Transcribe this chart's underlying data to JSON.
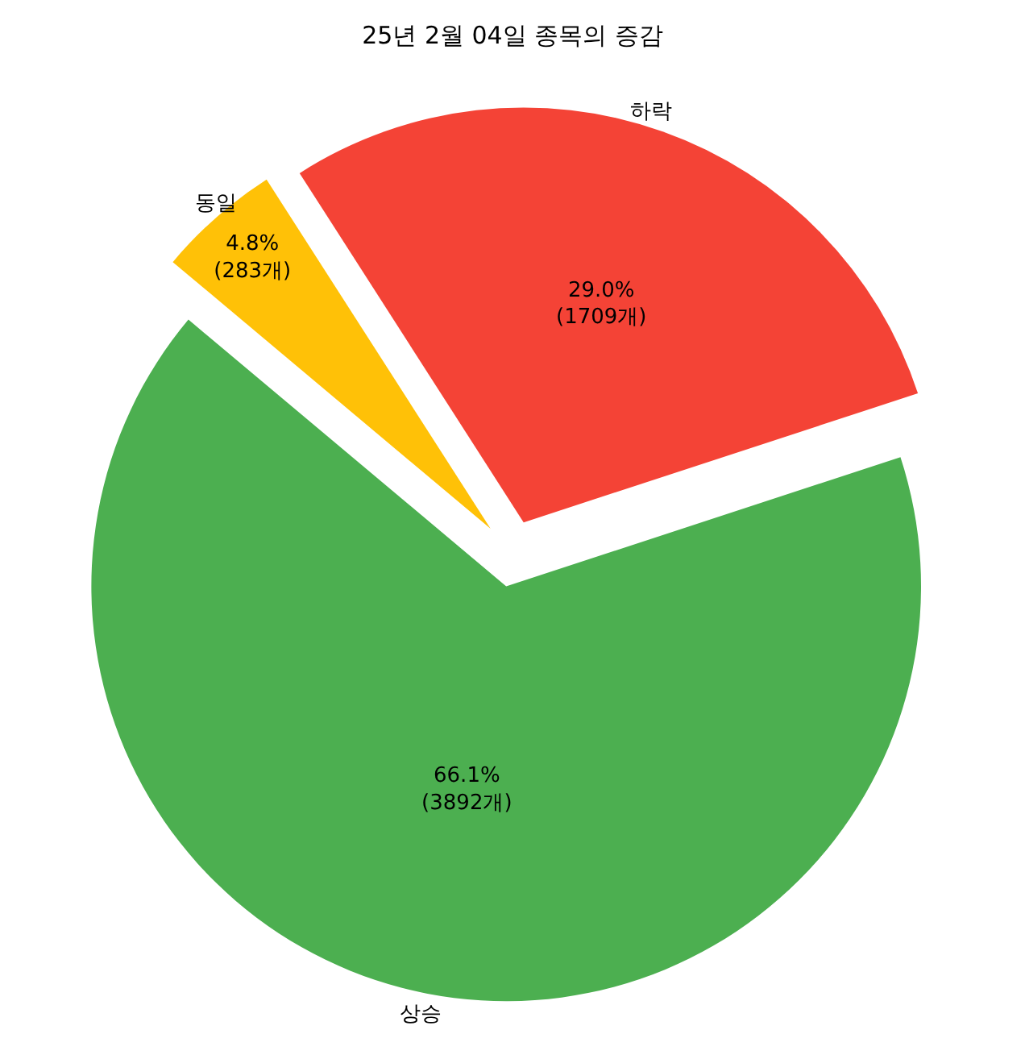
{
  "chart_data": {
    "type": "pie",
    "title": "25년 2월 04일 종목의 증감",
    "categories": [
      "상승",
      "하락",
      "동일"
    ],
    "values": [
      3892,
      1709,
      283
    ],
    "colors": [
      "#4caf50",
      "#f44336",
      "#ffc107"
    ],
    "value_labels": [
      "66.1%\n(3892개)",
      "29.0%\n(1709개)",
      "4.8%\n(283개)"
    ],
    "legend": false
  }
}
